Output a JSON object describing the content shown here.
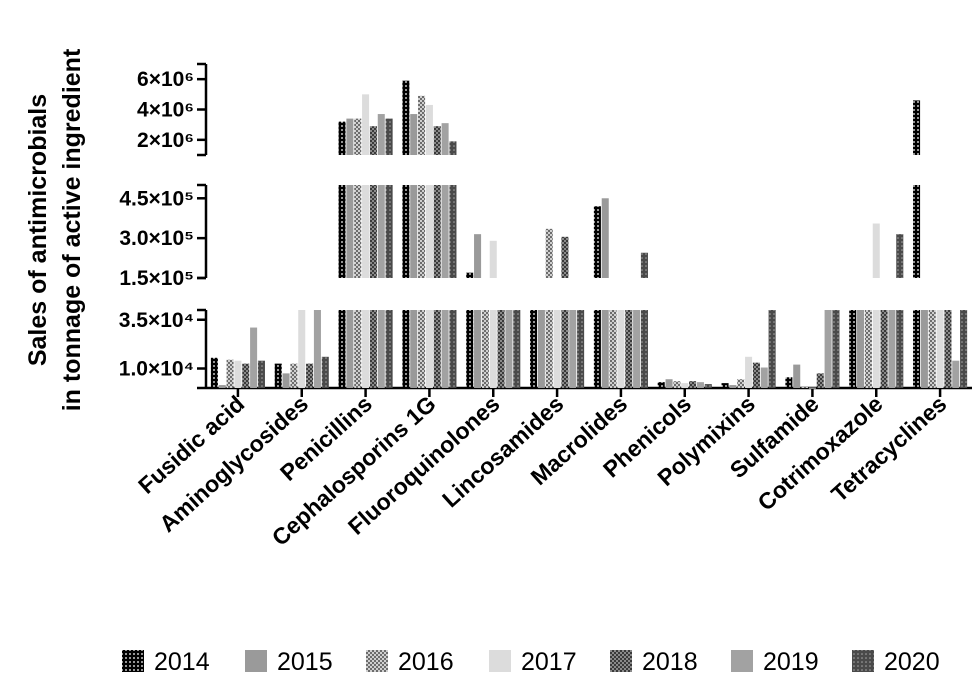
{
  "chart_data": {
    "type": "bar",
    "ylabel_line1": "Sales of antimicrobials",
    "ylabel_line2": "in tonnage of active ingredient",
    "categories": [
      "Fusidic acid",
      "Aminoglycosides",
      "Penicillins",
      "Cephalosporins 1G",
      "Fluoroquinolones",
      "Lincosamides",
      "Macrolides",
      "Phenicols",
      "Polymixins",
      "Sulfamide",
      "Cotrimoxazole",
      "Tetracyclines"
    ],
    "y_segments": [
      {
        "range": [
          0,
          40000
        ],
        "ticks": [
          {
            "value": 10000,
            "label": "1.0×10⁴"
          },
          {
            "value": 35000,
            "label": "3.5×10⁴"
          }
        ]
      },
      {
        "range": [
          150000,
          500000
        ],
        "ticks": [
          {
            "value": 150000,
            "label": "1.5×10⁵"
          },
          {
            "value": 300000,
            "label": "3.0×10⁵"
          },
          {
            "value": 450000,
            "label": "4.5×10⁵"
          }
        ]
      },
      {
        "range": [
          1000000,
          7000000
        ],
        "ticks": [
          {
            "value": 2000000,
            "label": "2×10⁶"
          },
          {
            "value": 4000000,
            "label": "4×10⁶"
          },
          {
            "value": 6000000,
            "label": "6×10⁶"
          }
        ]
      }
    ],
    "series": [
      {
        "name": "2014",
        "pattern": "dots-on-black",
        "values": [
          15500,
          12500,
          3200000,
          5900000,
          170000,
          40000,
          420000,
          3000,
          2500,
          5500,
          40000,
          4600000
        ]
      },
      {
        "name": "2015",
        "pattern": "mid-gray",
        "values": [
          1500,
          7500,
          3400000,
          3700000,
          315000,
          40000,
          450000,
          4500,
          1500,
          12000,
          40000,
          40000
        ]
      },
      {
        "name": "2016",
        "pattern": "checker-gray",
        "values": [
          14500,
          12500,
          3400000,
          4900000,
          40000,
          335000,
          40000,
          3500,
          4500,
          500,
          40000,
          40000
        ]
      },
      {
        "name": "2017",
        "pattern": "light-gray",
        "values": [
          14000,
          40000,
          5000000,
          4300000,
          290000,
          40000,
          40000,
          2500,
          16000,
          200,
          355000,
          40000
        ]
      },
      {
        "name": "2018",
        "pattern": "dark-checker",
        "values": [
          12500,
          12500,
          2900000,
          2900000,
          40000,
          305000,
          40000,
          3500,
          13000,
          7500,
          40000,
          40000
        ]
      },
      {
        "name": "2019",
        "pattern": "gray",
        "values": [
          31000,
          40000,
          3700000,
          3100000,
          40000,
          40000,
          40000,
          3000,
          10500,
          40000,
          40000,
          14000
        ]
      },
      {
        "name": "2020",
        "pattern": "dark-dotted",
        "values": [
          14000,
          16000,
          3400000,
          1900000,
          40000,
          40000,
          245000,
          2000,
          40000,
          40000,
          315000,
          40000
        ]
      }
    ]
  },
  "colors": {
    "axis": "#000000",
    "series_base": [
      "#000000",
      "#9a9a9a",
      "#8f8f8f",
      "#dcdcdc",
      "#4e4e4e",
      "#9e9e9e",
      "#5c5c5c"
    ]
  }
}
